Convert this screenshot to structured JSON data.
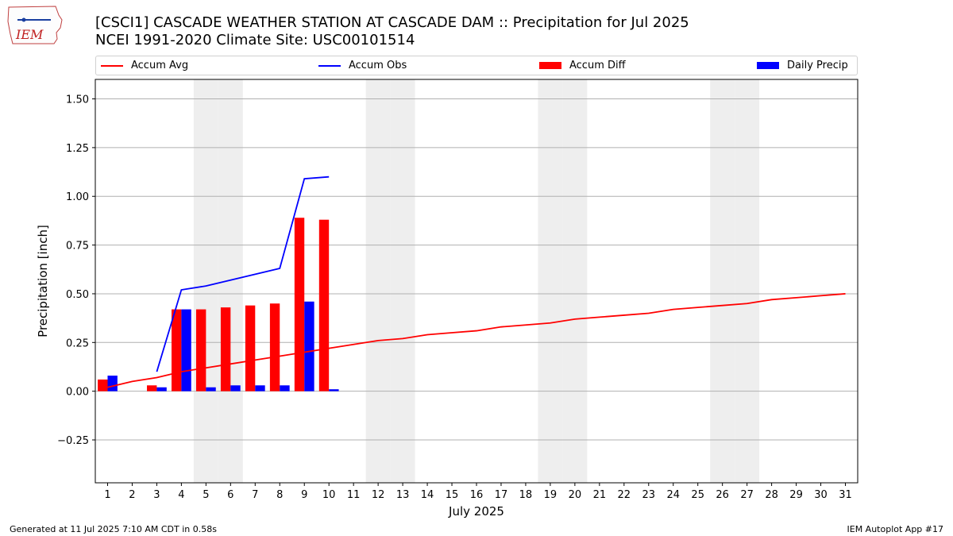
{
  "logo": {
    "text": "IEM"
  },
  "title_line1": "[CSCI1] CASCADE WEATHER STATION AT CASCADE DAM :: Precipitation for Jul 2025",
  "title_line2": "NCEI 1991-2020 Climate Site: USC00101514",
  "footer_left": "Generated at 11 Jul 2025 7:10 AM CDT in 0.58s",
  "footer_right": "IEM Autoplot App #17",
  "colors": {
    "avg": "#ff0000",
    "obs": "#0000ff",
    "diff": "#ff0000",
    "daily": "#0000ff",
    "weekend": "#eeeeee",
    "grid": "#b0b0b0"
  },
  "chart_data": {
    "type": "bar",
    "xlabel": "July 2025",
    "ylabel": "Precipitation [inch]",
    "xlim": [
      0.5,
      31.5
    ],
    "ylim": [
      -0.47,
      1.6
    ],
    "yticks": [
      -0.25,
      0.0,
      0.25,
      0.5,
      0.75,
      1.0,
      1.25,
      1.5
    ],
    "ytick_labels": [
      "−0.25",
      "0.00",
      "0.25",
      "0.50",
      "0.75",
      "1.00",
      "1.25",
      "1.50"
    ],
    "categories": [
      "1",
      "2",
      "3",
      "4",
      "5",
      "6",
      "7",
      "8",
      "9",
      "10",
      "11",
      "12",
      "13",
      "14",
      "15",
      "16",
      "17",
      "18",
      "19",
      "20",
      "21",
      "22",
      "23",
      "24",
      "25",
      "26",
      "27",
      "28",
      "29",
      "30",
      "31"
    ],
    "weekend_days": [
      5,
      6,
      12,
      13,
      19,
      20,
      26,
      27
    ],
    "grid": true,
    "legend_placement": "top",
    "series": [
      {
        "name": "Accum Avg",
        "kind": "line",
        "color": "#ff0000",
        "x": [
          1,
          2,
          3,
          4,
          5,
          6,
          7,
          8,
          9,
          10,
          11,
          12,
          13,
          14,
          15,
          16,
          17,
          18,
          19,
          20,
          21,
          22,
          23,
          24,
          25,
          26,
          27,
          28,
          29,
          30,
          31
        ],
        "values": [
          0.02,
          0.05,
          0.07,
          0.1,
          0.12,
          0.14,
          0.16,
          0.18,
          0.2,
          0.22,
          0.24,
          0.26,
          0.27,
          0.29,
          0.3,
          0.31,
          0.33,
          0.34,
          0.35,
          0.37,
          0.38,
          0.39,
          0.4,
          0.42,
          0.43,
          0.44,
          0.45,
          0.47,
          0.48,
          0.49,
          0.5
        ]
      },
      {
        "name": "Accum Obs",
        "kind": "line",
        "color": "#0000ff",
        "x": [
          3,
          4,
          5,
          6,
          7,
          8,
          9,
          10
        ],
        "values": [
          0.1,
          0.52,
          0.54,
          0.57,
          0.6,
          0.63,
          1.09,
          1.1
        ]
      },
      {
        "name": "Accum Diff",
        "kind": "bar",
        "color": "#ff0000",
        "x": [
          1,
          2,
          3,
          4,
          5,
          6,
          7,
          8,
          9,
          10
        ],
        "values": [
          0.06,
          0.0,
          0.03,
          0.42,
          0.42,
          0.43,
          0.44,
          0.45,
          0.89,
          0.88
        ]
      },
      {
        "name": "Daily Precip",
        "kind": "bar",
        "color": "#0000ff",
        "x": [
          1,
          2,
          3,
          4,
          5,
          6,
          7,
          8,
          9,
          10
        ],
        "values": [
          0.08,
          0.0,
          0.02,
          0.42,
          0.02,
          0.03,
          0.03,
          0.03,
          0.46,
          0.01
        ]
      }
    ]
  }
}
